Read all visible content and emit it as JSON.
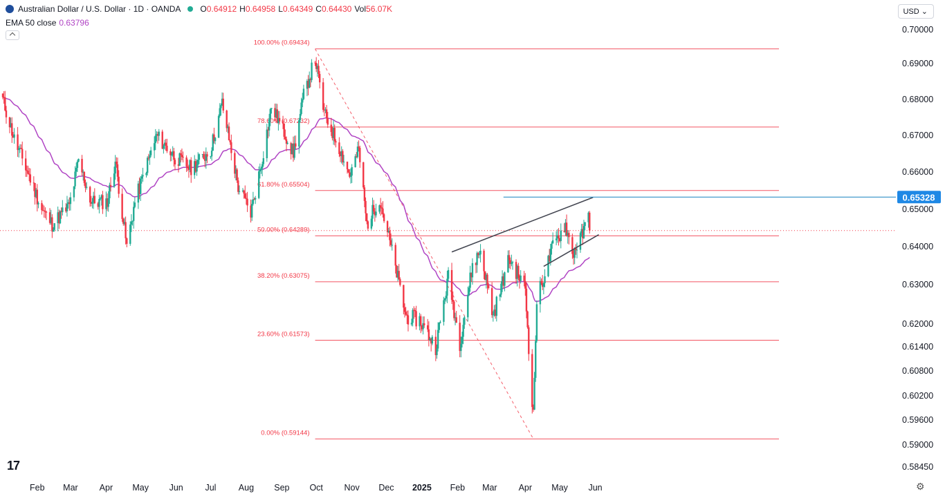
{
  "header": {
    "symbol": "Australian Dollar / U.S. Dollar · 1D · OANDA",
    "ohlc": [
      {
        "k": "O",
        "v": "0.64912"
      },
      {
        "k": "H",
        "v": "0.64958"
      },
      {
        "k": "L",
        "v": "0.64349"
      },
      {
        "k": "C",
        "v": "0.64430"
      },
      {
        "k": "Vol",
        "v": "56.07K"
      }
    ],
    "ema_label": "EMA 50 close",
    "ema_value": "0.63796",
    "currency": "USD",
    "logo": "17"
  },
  "colors": {
    "up": "#22ab94",
    "down": "#f23645",
    "ema": "#b044c4",
    "fib": "#f23645",
    "trend": "#434651",
    "hline": "#2f8fc6",
    "price_tag": "#1e88e5"
  },
  "chart_data": {
    "type": "candlestick",
    "title": "",
    "ylim": [
      0.5835,
      0.7035
    ],
    "y_ticks": [
      "0.70000",
      "0.69000",
      "0.68000",
      "0.67000",
      "0.66000",
      "0.65000",
      "0.64000",
      "0.63000",
      "0.62000",
      "0.61400",
      "0.60800",
      "0.60200",
      "0.59600",
      "0.59000",
      "0.58450"
    ],
    "x_ticks": [
      "Feb",
      "Mar",
      "Apr",
      "May",
      "Jun",
      "Jul",
      "Aug",
      "Sep",
      "Oct",
      "Nov",
      "Dec",
      "2025",
      "Feb",
      "Mar",
      "Apr",
      "May",
      "Jun"
    ],
    "anchors": [
      {
        "date": "2024-01-02",
        "close": 0.68
      },
      {
        "date": "2024-01-12",
        "close": 0.669
      },
      {
        "date": "2024-01-25",
        "close": 0.659
      },
      {
        "date": "2024-02-05",
        "close": 0.65
      },
      {
        "date": "2024-02-14",
        "close": 0.646
      },
      {
        "date": "2024-02-29",
        "close": 0.651
      },
      {
        "date": "2024-03-08",
        "close": 0.663
      },
      {
        "date": "2024-03-19",
        "close": 0.652
      },
      {
        "date": "2024-04-02",
        "close": 0.652
      },
      {
        "date": "2024-04-09",
        "close": 0.663
      },
      {
        "date": "2024-04-19",
        "close": 0.64
      },
      {
        "date": "2024-04-26",
        "close": 0.652
      },
      {
        "date": "2024-05-15",
        "close": 0.67
      },
      {
        "date": "2024-05-31",
        "close": 0.664
      },
      {
        "date": "2024-06-14",
        "close": 0.661
      },
      {
        "date": "2024-07-01",
        "close": 0.666
      },
      {
        "date": "2024-07-08",
        "close": 0.675
      },
      {
        "date": "2024-07-11",
        "close": 0.679
      },
      {
        "date": "2024-07-25",
        "close": 0.656
      },
      {
        "date": "2024-08-05",
        "close": 0.649
      },
      {
        "date": "2024-08-14",
        "close": 0.662
      },
      {
        "date": "2024-08-23",
        "close": 0.678
      },
      {
        "date": "2024-09-06",
        "close": 0.669
      },
      {
        "date": "2024-09-11",
        "close": 0.665
      },
      {
        "date": "2024-09-20",
        "close": 0.681
      },
      {
        "date": "2024-09-30",
        "close": 0.6915
      },
      {
        "date": "2024-10-08",
        "close": 0.676
      },
      {
        "date": "2024-10-22",
        "close": 0.666
      },
      {
        "date": "2024-10-30",
        "close": 0.659
      },
      {
        "date": "2024-11-07",
        "close": 0.666
      },
      {
        "date": "2024-11-14",
        "close": 0.646
      },
      {
        "date": "2024-11-25",
        "close": 0.653
      },
      {
        "date": "2024-12-05",
        "close": 0.64
      },
      {
        "date": "2024-12-18",
        "close": 0.622
      },
      {
        "date": "2024-12-30",
        "close": 0.621
      },
      {
        "date": "2025-01-13",
        "close": 0.614
      },
      {
        "date": "2025-01-24",
        "close": 0.632
      },
      {
        "date": "2025-02-03",
        "close": 0.615
      },
      {
        "date": "2025-02-14",
        "close": 0.635
      },
      {
        "date": "2025-02-21",
        "close": 0.639
      },
      {
        "date": "2025-03-04",
        "close": 0.622
      },
      {
        "date": "2025-03-18",
        "close": 0.637
      },
      {
        "date": "2025-04-01",
        "close": 0.629
      },
      {
        "date": "2025-04-04",
        "close": 0.614
      },
      {
        "date": "2025-04-08",
        "close": 0.597
      },
      {
        "date": "2025-04-11",
        "close": 0.626
      },
      {
        "date": "2025-04-25",
        "close": 0.64
      },
      {
        "date": "2025-05-06",
        "close": 0.646
      },
      {
        "date": "2025-05-12",
        "close": 0.638
      },
      {
        "date": "2025-05-22",
        "close": 0.644
      },
      {
        "date": "2025-05-26",
        "close": 0.6491
      },
      {
        "date": "2025-05-27",
        "close": 0.6443
      }
    ],
    "ema_label": "EMA 50 close",
    "last_price": "0.64430",
    "fibonacci": {
      "start_date": "2024-09-30",
      "end_date": "2025-03-04",
      "levels": [
        {
          "label": "100.00% (0.69434)",
          "value": 0.69434
        },
        {
          "label": "78.60% (0.67232)",
          "value": 0.67232
        },
        {
          "label": "61.80% (0.65504)",
          "value": 0.65504
        },
        {
          "label": "50.00% (0.64289)",
          "value": 0.64289
        },
        {
          "label": "38.20% (0.63075)",
          "value": 0.63075
        },
        {
          "label": "23.60% (0.61573)",
          "value": 0.61573
        },
        {
          "label": "0.00% (0.59144)",
          "value": 0.59144
        }
      ],
      "diagonal": {
        "from": [
          "2024-09-30",
          0.69434
        ],
        "to": [
          "2025-04-08",
          0.59144
        ]
      }
    },
    "trendlines": [
      {
        "from": [
          "2025-01-27",
          0.6386
        ],
        "to": [
          "2025-05-30",
          0.6532
        ]
      },
      {
        "from": [
          "2025-04-17",
          0.6348
        ],
        "to": [
          "2025-06-04",
          0.6432
        ]
      }
    ],
    "resistance": {
      "value": 0.65328,
      "label": "0.65328",
      "from_date": "2025-03-13"
    }
  }
}
